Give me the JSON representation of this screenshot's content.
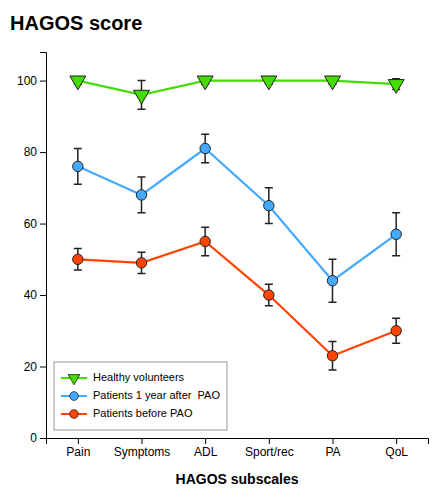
{
  "chart_data": {
    "type": "line",
    "title": "HAGOS score",
    "x_label": "HAGOS subscales",
    "categories": [
      "Pain",
      "Symptoms",
      "ADL",
      "Sport/rec",
      "PA",
      "QoL"
    ],
    "series": [
      {
        "name": "Healthy volunteers",
        "color": "#44dd00",
        "marker": "triangle-down",
        "values": [
          100,
          96,
          100,
          100,
          100,
          99
        ],
        "errors": [
          1,
          4,
          1,
          1,
          1,
          1.5
        ]
      },
      {
        "name": "Patients 1 year after  PAO",
        "color": "#44aaff",
        "marker": "circle",
        "values": [
          76,
          68,
          81,
          65,
          44,
          57
        ],
        "errors": [
          5,
          5,
          4,
          5,
          6,
          6
        ]
      },
      {
        "name": "Patients before PAO",
        "color": "#ff4400",
        "marker": "circle",
        "values": [
          50,
          49,
          55,
          40,
          23,
          30
        ],
        "errors": [
          3,
          3,
          4,
          3,
          4,
          3.5
        ]
      }
    ],
    "ylim": [
      0,
      108
    ],
    "yticks": [
      0,
      20,
      40,
      60,
      80,
      100
    ],
    "grid": false,
    "legend": "lower left"
  }
}
